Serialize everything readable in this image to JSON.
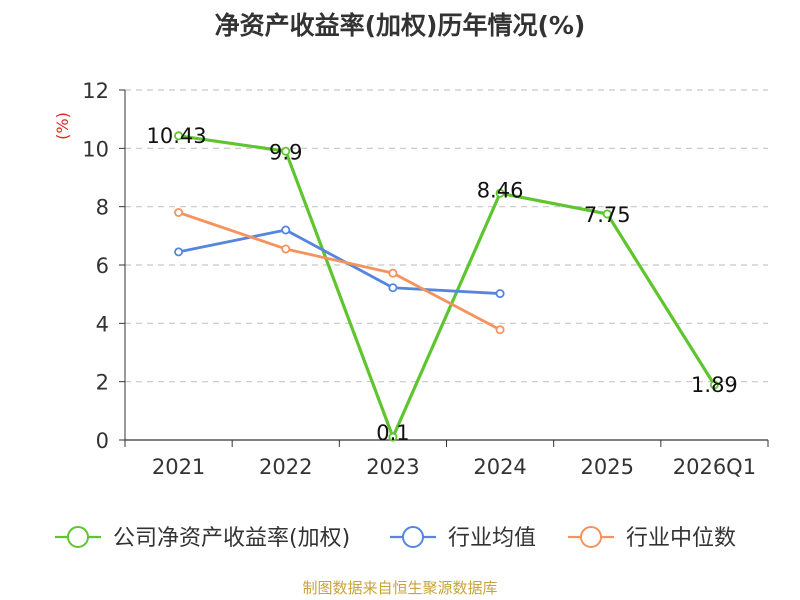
{
  "chart_data": {
    "type": "line",
    "title": "净资产收益率(加权)历年情况(%)",
    "ylabel": "(%)",
    "xlabel": "",
    "ylim": [
      0,
      12
    ],
    "yticks": [
      0,
      2,
      4,
      6,
      8,
      10,
      12
    ],
    "categories": [
      "2021",
      "2022",
      "2023",
      "2024",
      "2025",
      "2026Q1"
    ],
    "grid": true,
    "legend_position": "bottom",
    "series": [
      {
        "name": "公司净资产收益率(加权)",
        "color": "#5ec52f",
        "values": [
          10.43,
          9.9,
          0.1,
          8.46,
          7.75,
          1.89
        ],
        "labels": [
          "10.43",
          "9.9",
          "0.1",
          "8.46",
          "7.75",
          "1.89"
        ]
      },
      {
        "name": "行业均值",
        "color": "#5585dc",
        "values": [
          6.45,
          7.2,
          5.22,
          5.02,
          null,
          null
        ]
      },
      {
        "name": "行业中位数",
        "color": "#f5935e",
        "values": [
          7.8,
          6.55,
          5.72,
          3.78,
          null,
          null
        ]
      }
    ],
    "source": "制图数据来自恒生聚源数据库"
  }
}
